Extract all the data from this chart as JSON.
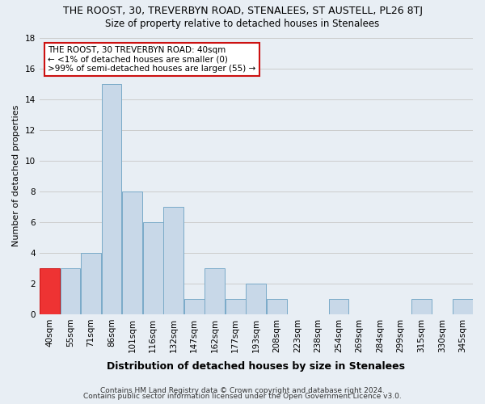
{
  "title": "THE ROOST, 30, TREVERBYN ROAD, STENALEES, ST AUSTELL, PL26 8TJ",
  "subtitle": "Size of property relative to detached houses in Stenalees",
  "xlabel": "Distribution of detached houses by size in Stenalees",
  "ylabel": "Number of detached properties",
  "footer1": "Contains HM Land Registry data © Crown copyright and database right 2024.",
  "footer2": "Contains public sector information licensed under the Open Government Licence v3.0.",
  "bin_labels": [
    "40sqm",
    "55sqm",
    "71sqm",
    "86sqm",
    "101sqm",
    "116sqm",
    "132sqm",
    "147sqm",
    "162sqm",
    "177sqm",
    "193sqm",
    "208sqm",
    "223sqm",
    "238sqm",
    "254sqm",
    "269sqm",
    "284sqm",
    "299sqm",
    "315sqm",
    "330sqm",
    "345sqm"
  ],
  "bar_values": [
    3,
    3,
    4,
    15,
    8,
    6,
    7,
    1,
    3,
    1,
    2,
    1,
    0,
    0,
    1,
    0,
    0,
    0,
    1,
    0,
    1
  ],
  "bar_color": "#c8d8e8",
  "bar_edge_color": "#7aaac8",
  "highlight_bar_index": 0,
  "highlight_color": "#ee3333",
  "highlight_edge_color": "#cc1111",
  "ylim": [
    0,
    18
  ],
  "yticks": [
    0,
    2,
    4,
    6,
    8,
    10,
    12,
    14,
    16,
    18
  ],
  "grid_color": "#cccccc",
  "background_color": "#e8eef4",
  "annotation_line1": "THE ROOST, 30 TREVERBYN ROAD: 40sqm",
  "annotation_line2": "← <1% of detached houses are smaller (0)",
  "annotation_line3": ">99% of semi-detached houses are larger (55) →",
  "annotation_box_color": "#ffffff",
  "annotation_box_edge": "#cc1111",
  "title_fontsize": 9,
  "subtitle_fontsize": 8.5,
  "ylabel_fontsize": 8,
  "xlabel_fontsize": 9,
  "tick_fontsize": 7.5,
  "footer_fontsize": 6.5
}
